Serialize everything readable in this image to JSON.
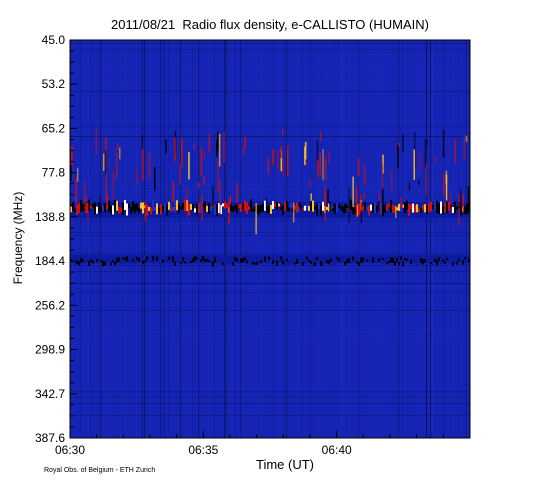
{
  "title": "2011/08/21  Radio flux density, e-CALLISTO (HUMAIN)",
  "footer_credit": "Royal Obs. of Belgium - ETH Zurich",
  "chart_data": {
    "type": "heatmap",
    "title": "2011/08/21  Radio flux density, e-CALLISTO (HUMAIN)",
    "xlabel": "Time (UT)",
    "ylabel": "Frequency (MHz)",
    "x_ticks": [
      "06:30",
      "06:35",
      "06:40"
    ],
    "x_range": [
      "06:30",
      "06:45"
    ],
    "y_ticks": [
      "45.0",
      "53.2",
      "65.2",
      "77.8",
      "138.8",
      "184.4",
      "256.2",
      "298.9",
      "342.7",
      "387.6"
    ],
    "y_range": [
      45.0,
      387.6
    ],
    "colormap": [
      "#000000",
      "#0a1a9c",
      "#1f2fd0",
      "#cc1010",
      "#ffc020",
      "#ffffff"
    ],
    "background_color": "#1624b4",
    "features": [
      {
        "kind": "interference_band",
        "frequency_mhz": 138.8,
        "intensity": "high"
      },
      {
        "kind": "interference_band",
        "frequency_mhz": 184.4,
        "intensity": "medium"
      },
      {
        "kind": "vertical_spikes",
        "frequency_range_mhz": [
          65.2,
          138.8
        ],
        "intensity": "medium"
      }
    ]
  }
}
